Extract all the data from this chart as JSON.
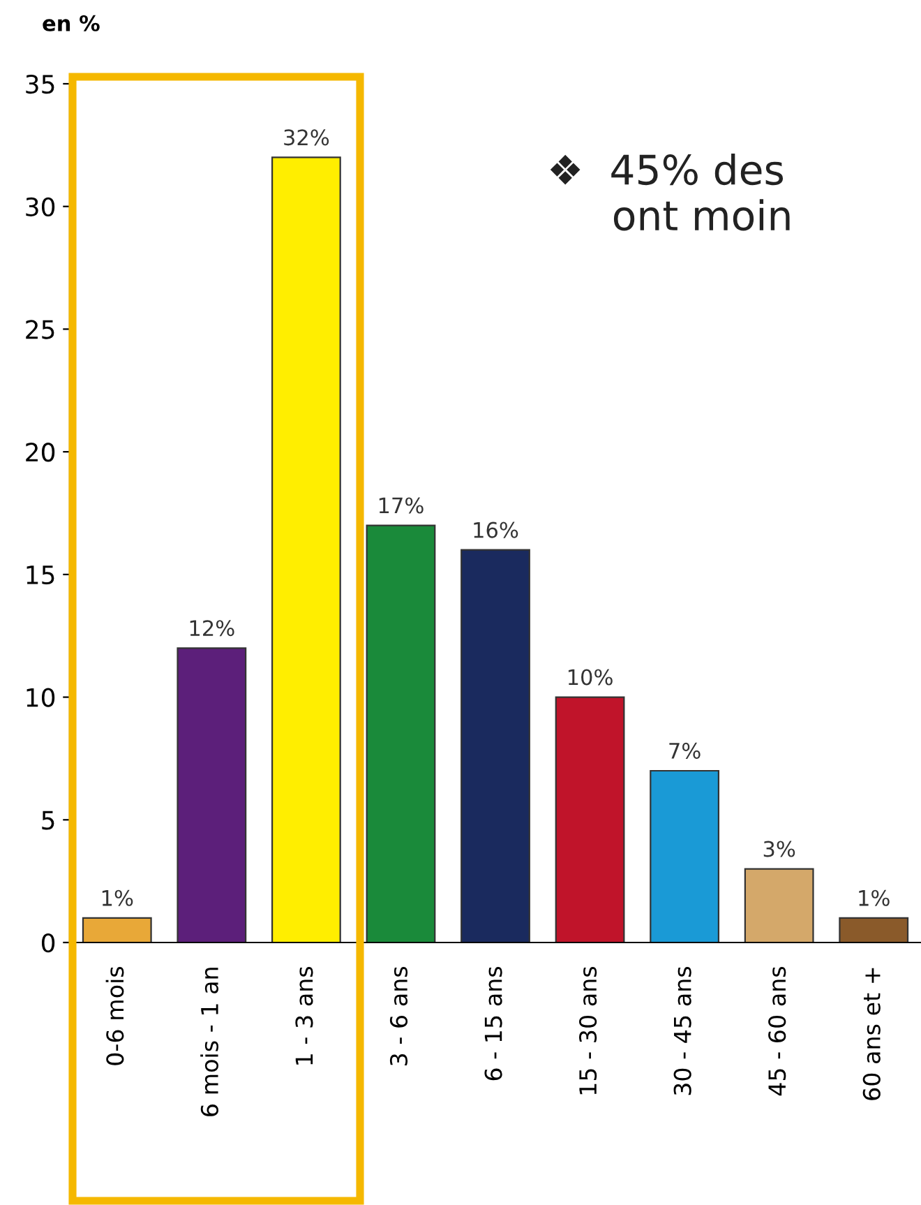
{
  "chart_data": {
    "type": "bar",
    "ylabel": "en %",
    "categories": [
      "0-6 mois",
      "6 mois - 1 an",
      "1 - 3 ans",
      "3 - 6 ans",
      "6 - 15 ans",
      "15 - 30 ans",
      "30 - 45 ans",
      "45 - 60 ans",
      "60 ans et +"
    ],
    "values": [
      1,
      12,
      32,
      17,
      16,
      10,
      7,
      3,
      1
    ],
    "colors": [
      "#e8a838",
      "#5c1f7a",
      "#ffee00",
      "#1a8a3a",
      "#1a2a5e",
      "#c0142a",
      "#1a9ad6",
      "#d4a86a",
      "#8a5a2a"
    ],
    "value_labels": [
      "1%",
      "12%",
      "32%",
      "17%",
      "16%",
      "10%",
      "7%",
      "3%",
      "1%"
    ],
    "ylim": [
      0,
      35
    ],
    "yticks": [
      0,
      5,
      10,
      15,
      20,
      25,
      30,
      35
    ],
    "grid": false,
    "legend": false,
    "annotations": [
      "❖  45% des\n     ont moin"
    ]
  }
}
